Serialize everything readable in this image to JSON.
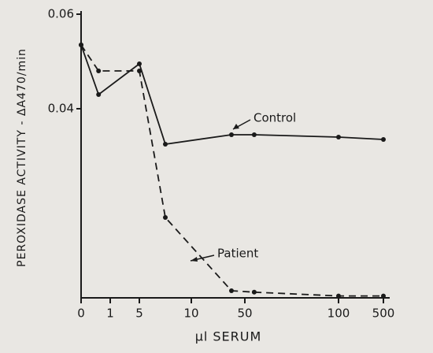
{
  "chart_data": {
    "type": "line",
    "x_label": "µl SERUM",
    "y_label": "PEROXIDASE ACTIVITY - ΔA470/min",
    "x": [
      0,
      0.6,
      5,
      7.5,
      40,
      55,
      100,
      500
    ],
    "xlim": [
      0,
      500
    ],
    "xticks": [
      0,
      1,
      5,
      10,
      50,
      100,
      500
    ],
    "ylim": [
      0,
      0.06
    ],
    "yticks": [
      0.04,
      0.06
    ],
    "series": [
      {
        "name": "Control",
        "color": "#1a1a1a",
        "linestyle": "solid",
        "values": [
          0.0535,
          0.043,
          0.0495,
          0.0325,
          0.0345,
          0.0345,
          0.034,
          0.0335
        ]
      },
      {
        "name": "Patient",
        "color": "#1a1a1a",
        "linestyle": "dashed",
        "values": [
          0.0535,
          0.048,
          0.048,
          0.017,
          0.0015,
          0.0012,
          0.0004,
          0.0004
        ]
      }
    ]
  }
}
